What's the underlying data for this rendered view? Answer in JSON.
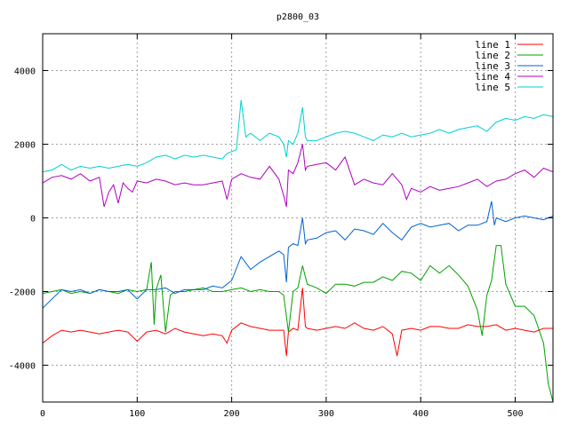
{
  "chart_data": {
    "type": "line",
    "title": "p2800_03",
    "xlabel": "",
    "ylabel": "",
    "xlim": [
      0,
      540
    ],
    "ylim": [
      -5000,
      5000
    ],
    "xticks": [
      0,
      100,
      200,
      300,
      400,
      500
    ],
    "yticks": [
      -4000,
      -2000,
      0,
      2000,
      4000
    ],
    "grid": true,
    "legend_position": "top-right",
    "series": [
      {
        "name": "line 1",
        "color": "#ff0000",
        "x": [
          0,
          10,
          20,
          30,
          40,
          50,
          60,
          70,
          80,
          90,
          100,
          110,
          120,
          130,
          140,
          150,
          160,
          170,
          180,
          190,
          195,
          200,
          210,
          220,
          230,
          240,
          250,
          255,
          258,
          260,
          265,
          270,
          275,
          278,
          280,
          290,
          300,
          310,
          320,
          330,
          340,
          350,
          360,
          370,
          375,
          380,
          390,
          400,
          410,
          420,
          430,
          440,
          450,
          460,
          470,
          480,
          490,
          500,
          510,
          520,
          530,
          540
        ],
        "values": [
          -3400,
          -3200,
          -3050,
          -3100,
          -3050,
          -3100,
          -3150,
          -3100,
          -3050,
          -3100,
          -3350,
          -3100,
          -3050,
          -3150,
          -3000,
          -3100,
          -3150,
          -3200,
          -3150,
          -3200,
          -3400,
          -3050,
          -2850,
          -2950,
          -3000,
          -3050,
          -3050,
          -3050,
          -3750,
          -3100,
          -3000,
          -3050,
          -1900,
          -2950,
          -3000,
          -3050,
          -3000,
          -2950,
          -3000,
          -2850,
          -3000,
          -3050,
          -2950,
          -3150,
          -3750,
          -3050,
          -3000,
          -3050,
          -2950,
          -2950,
          -3000,
          -3000,
          -2900,
          -2950,
          -2950,
          -2900,
          -3050,
          -3000,
          -3050,
          -3100,
          -3000,
          -3000
        ]
      },
      {
        "name": "line 2",
        "color": "#00a000",
        "x": [
          0,
          10,
          20,
          30,
          40,
          50,
          60,
          70,
          80,
          90,
          100,
          110,
          115,
          118,
          120,
          125,
          130,
          135,
          140,
          150,
          160,
          170,
          180,
          190,
          200,
          210,
          220,
          230,
          240,
          250,
          255,
          260,
          265,
          270,
          275,
          280,
          290,
          300,
          310,
          320,
          330,
          340,
          350,
          360,
          370,
          380,
          390,
          400,
          410,
          420,
          430,
          440,
          450,
          460,
          465,
          470,
          475,
          480,
          485,
          490,
          500,
          510,
          520,
          530,
          535,
          540
        ],
        "values": [
          -2050,
          -2000,
          -1950,
          -2050,
          -2000,
          -2050,
          -1950,
          -2000,
          -2050,
          -1950,
          -2000,
          -1950,
          -1200,
          -2900,
          -1950,
          -1550,
          -3100,
          -2100,
          -2000,
          -2000,
          -1950,
          -1900,
          -2000,
          -2000,
          -1950,
          -1900,
          -2000,
          -1950,
          -2000,
          -2000,
          -2100,
          -3100,
          -2000,
          -1900,
          -1300,
          -1800,
          -1900,
          -2050,
          -1800,
          -1800,
          -1850,
          -1750,
          -1750,
          -1600,
          -1700,
          -1450,
          -1500,
          -1700,
          -1300,
          -1500,
          -1300,
          -1550,
          -1850,
          -2500,
          -3200,
          -2100,
          -1700,
          -750,
          -750,
          -1800,
          -2400,
          -2400,
          -2650,
          -3400,
          -4500,
          -5000
        ]
      },
      {
        "name": "line 3",
        "color": "#0060d0",
        "x": [
          0,
          10,
          20,
          30,
          40,
          50,
          60,
          70,
          80,
          90,
          100,
          110,
          120,
          130,
          140,
          150,
          160,
          170,
          180,
          190,
          200,
          210,
          220,
          230,
          240,
          250,
          255,
          258,
          260,
          265,
          270,
          275,
          278,
          280,
          290,
          300,
          310,
          320,
          330,
          340,
          350,
          360,
          370,
          380,
          390,
          400,
          410,
          420,
          430,
          440,
          450,
          460,
          470,
          475,
          478,
          480,
          490,
          500,
          510,
          520,
          530,
          540
        ],
        "values": [
          -2450,
          -2200,
          -1950,
          -2000,
          -1950,
          -2050,
          -1950,
          -2000,
          -2000,
          -1950,
          -2200,
          -1950,
          -1950,
          -1900,
          -2050,
          -1950,
          -1950,
          -1950,
          -1850,
          -1900,
          -1700,
          -1050,
          -1400,
          -1200,
          -1050,
          -900,
          -1000,
          -1750,
          -800,
          -700,
          -750,
          0,
          -700,
          -600,
          -550,
          -400,
          -350,
          -600,
          -300,
          -350,
          -450,
          -150,
          -400,
          -600,
          -250,
          -150,
          -250,
          -200,
          -150,
          -350,
          -200,
          -200,
          -100,
          450,
          -200,
          0,
          -100,
          0,
          50,
          0,
          -50,
          50
        ]
      },
      {
        "name": "line 4",
        "color": "#b000c0",
        "x": [
          0,
          10,
          20,
          30,
          40,
          50,
          60,
          65,
          70,
          75,
          80,
          85,
          90,
          95,
          100,
          110,
          120,
          130,
          140,
          150,
          160,
          170,
          180,
          190,
          195,
          200,
          210,
          220,
          230,
          240,
          250,
          255,
          258,
          260,
          265,
          270,
          275,
          278,
          280,
          290,
          300,
          310,
          320,
          330,
          340,
          350,
          360,
          370,
          380,
          385,
          390,
          400,
          410,
          420,
          430,
          440,
          450,
          460,
          470,
          480,
          490,
          500,
          510,
          520,
          530,
          540
        ],
        "values": [
          950,
          1100,
          1150,
          1050,
          1200,
          1000,
          1100,
          300,
          700,
          900,
          400,
          950,
          800,
          700,
          1000,
          950,
          1050,
          1000,
          900,
          950,
          900,
          900,
          950,
          1000,
          500,
          1050,
          1200,
          1100,
          1050,
          1400,
          1050,
          600,
          300,
          1300,
          1200,
          1500,
          2000,
          1300,
          1400,
          1450,
          1500,
          1300,
          1650,
          900,
          1050,
          950,
          900,
          1200,
          900,
          500,
          800,
          700,
          850,
          750,
          800,
          850,
          950,
          1050,
          850,
          1000,
          1050,
          1200,
          1300,
          1100,
          1350,
          1250
        ]
      },
      {
        "name": "line 5",
        "color": "#00d0d0",
        "x": [
          0,
          10,
          20,
          30,
          40,
          50,
          60,
          70,
          80,
          90,
          100,
          110,
          120,
          130,
          140,
          150,
          160,
          170,
          180,
          190,
          195,
          200,
          205,
          210,
          215,
          220,
          230,
          240,
          250,
          255,
          258,
          260,
          265,
          270,
          275,
          278,
          280,
          290,
          300,
          310,
          320,
          330,
          340,
          350,
          360,
          370,
          380,
          390,
          400,
          410,
          420,
          430,
          440,
          450,
          460,
          470,
          480,
          490,
          500,
          510,
          520,
          530,
          540
        ],
        "values": [
          1250,
          1300,
          1450,
          1300,
          1400,
          1350,
          1400,
          1350,
          1400,
          1450,
          1400,
          1500,
          1650,
          1700,
          1600,
          1700,
          1650,
          1700,
          1650,
          1600,
          1750,
          1800,
          1850,
          3200,
          2200,
          2300,
          2100,
          2300,
          2200,
          2000,
          1650,
          2100,
          2000,
          2300,
          3000,
          2200,
          2100,
          2100,
          2200,
          2300,
          2350,
          2300,
          2200,
          2100,
          2250,
          2200,
          2300,
          2200,
          2250,
          2300,
          2400,
          2300,
          2400,
          2450,
          2500,
          2350,
          2600,
          2700,
          2650,
          2750,
          2700,
          2800,
          2750
        ]
      }
    ]
  }
}
